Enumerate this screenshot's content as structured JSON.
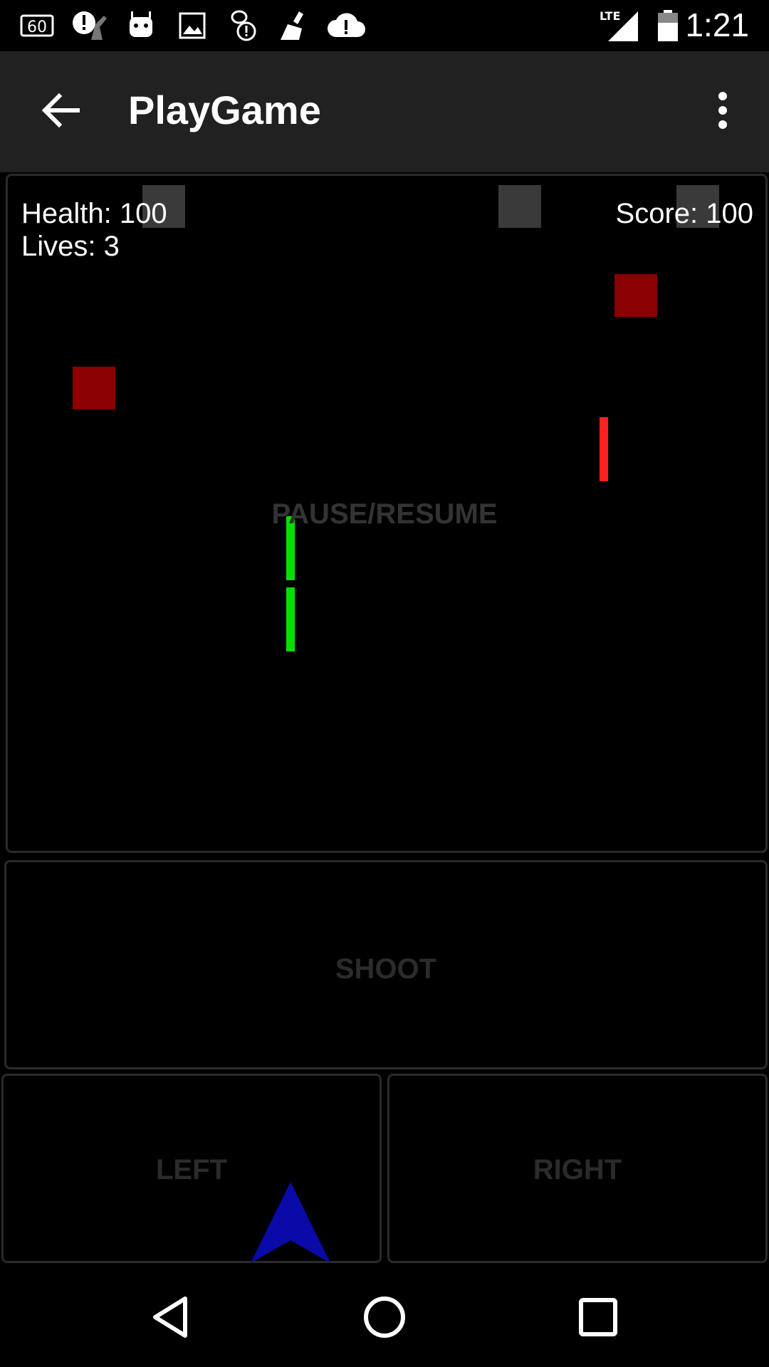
{
  "status_bar": {
    "time": "1:21",
    "network": "LTE",
    "icons": [
      "60-fps-icon",
      "alert-icon",
      "android-icon",
      "image-icon",
      "notification-icon",
      "broom-icon",
      "cloud-alert-icon",
      "signal-icon",
      "battery-icon"
    ],
    "sixty_label": "60"
  },
  "toolbar": {
    "title": "PlayGame",
    "back_icon": "arrow-left-icon",
    "overflow_icon": "more-vert-icon"
  },
  "game": {
    "health_text": "Health: 100",
    "lives_text": "Lives: 3",
    "score_text": "Score: 100",
    "pause_label": "PAUSE/RESUME",
    "colors": {
      "enemy": "#8b0000",
      "enemy_bullet": "#ff2020",
      "player_bullet": "#00e000",
      "player_ship": "#0a0aa8",
      "obstacle": "#3a3a3a"
    }
  },
  "controls": {
    "shoot_label": "SHOOT",
    "left_label": "LEFT",
    "right_label": "RIGHT"
  },
  "nav_bar": {
    "back_icon": "nav-back-icon",
    "home_icon": "nav-home-icon",
    "recents_icon": "nav-recents-icon"
  }
}
